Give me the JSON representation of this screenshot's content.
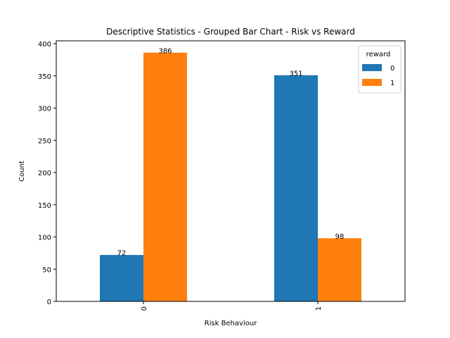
{
  "chart_data": {
    "type": "bar",
    "title": "Descriptive Statistics - Grouped Bar Chart - Risk vs Reward",
    "xlabel": "Risk Behaviour",
    "ylabel": "Count",
    "categories": [
      "0",
      "1"
    ],
    "series": [
      {
        "name": "0",
        "values": [
          72,
          351
        ],
        "color": "#1f77b4"
      },
      {
        "name": "1",
        "values": [
          386,
          98
        ],
        "color": "#ff7f0e"
      }
    ],
    "ylim": [
      0,
      400
    ],
    "yticks": [
      "0",
      "50",
      "100",
      "150",
      "200",
      "250",
      "300",
      "350",
      "400"
    ],
    "legend": {
      "title": "reward",
      "position": "top-right"
    },
    "grid": false
  }
}
